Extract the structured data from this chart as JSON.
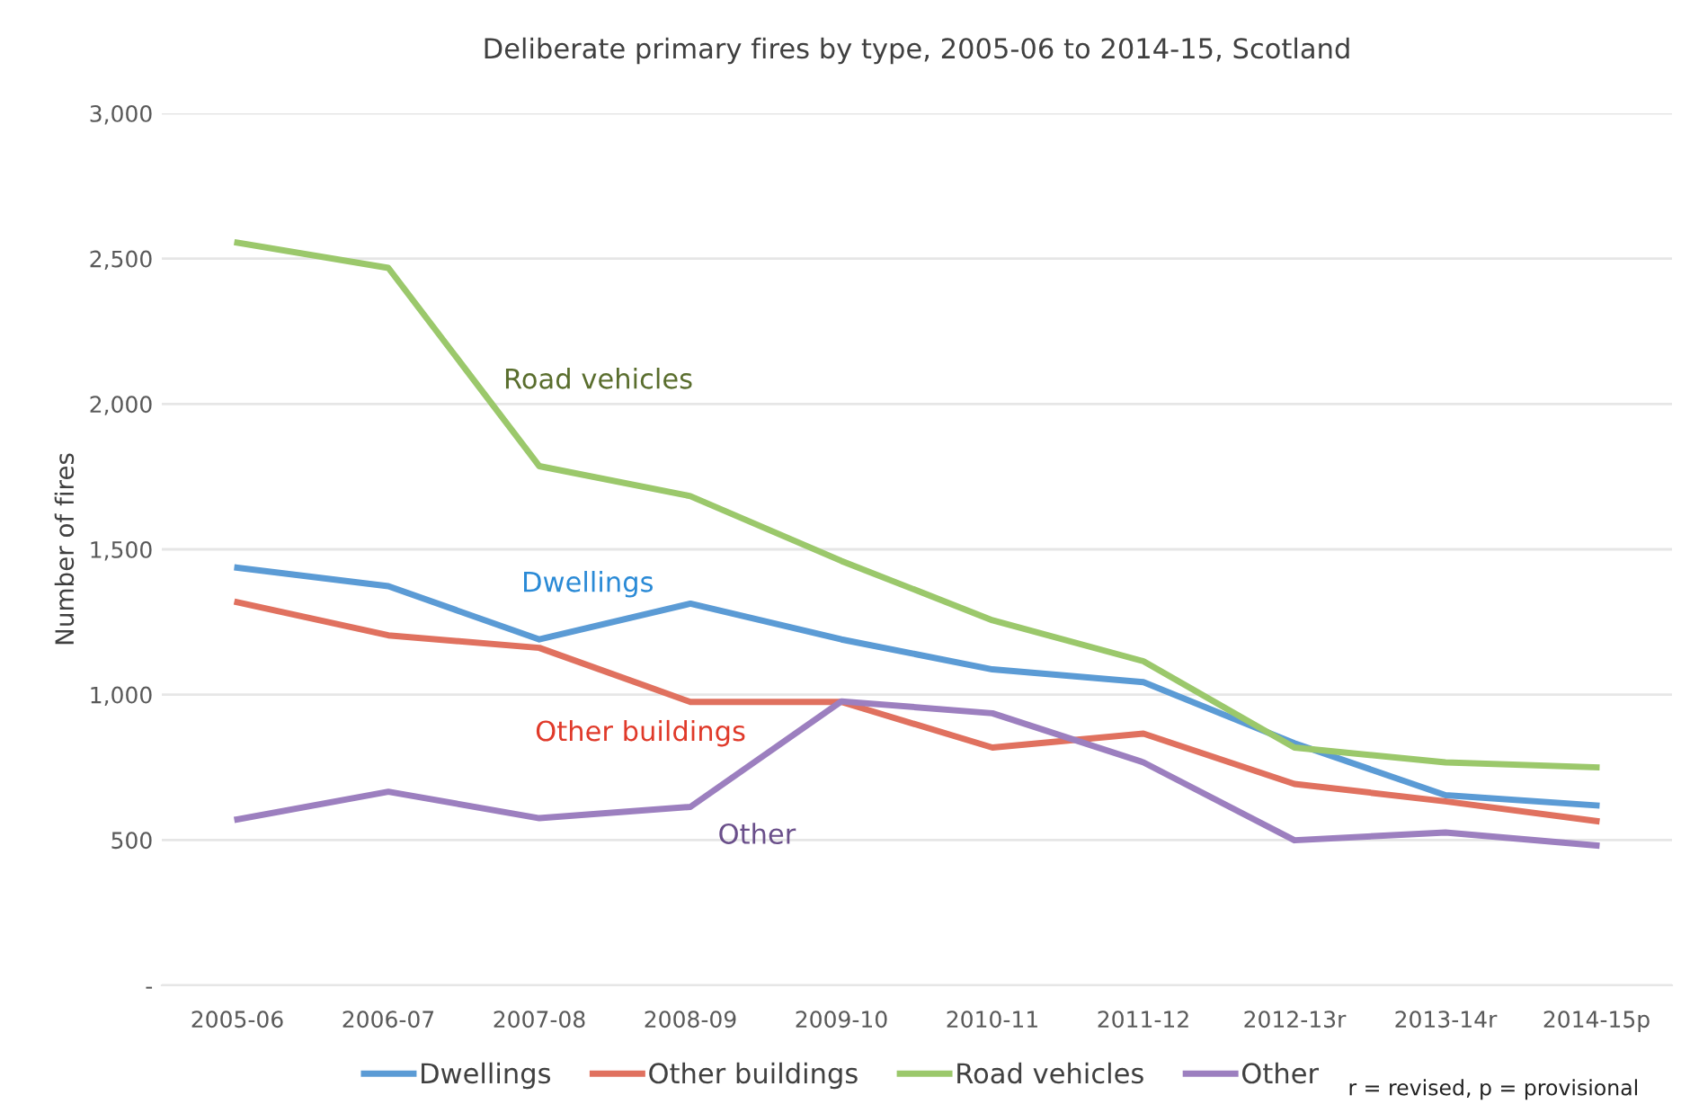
{
  "chart_data": {
    "type": "line",
    "title": "Deliberate primary fires by type, 2005-06 to 2014-15, Scotland",
    "ylabel": "Number of fires",
    "categories": [
      "2005-06",
      "2006-07",
      "2007-08",
      "2008-09",
      "2009-10",
      "2010-11",
      "2011-12",
      "2012-13r",
      "2013-14r",
      "2014-15p"
    ],
    "series": [
      {
        "name": "Dwellings",
        "color": "#5b9bd5",
        "values": [
          1437,
          1373,
          1190,
          1313,
          1190,
          1087,
          1043,
          833,
          654,
          619
        ]
      },
      {
        "name": "Other buildings",
        "color": "#e0715f",
        "values": [
          1318,
          1204,
          1161,
          975,
          975,
          818,
          866,
          693,
          633,
          565
        ]
      },
      {
        "name": "Road vehicles",
        "color": "#9bc86b",
        "values": [
          2555,
          2468,
          1786,
          1683,
          1460,
          1256,
          1115,
          818,
          767,
          750
        ]
      },
      {
        "name": "Other",
        "color": "#9c7fbf",
        "values": [
          571,
          666,
          575,
          614,
          977,
          936,
          767,
          499,
          526,
          481
        ]
      }
    ],
    "annotations": [
      "Road vehicles",
      "Dwellings",
      "Other buildings",
      "Other",
      "r = revised, p = provisional"
    ],
    "ylim": [
      0,
      3000
    ],
    "yticks": [
      {
        "value": 0,
        "label": "-"
      },
      500,
      {
        "value": 1000,
        "label": "1,000"
      },
      {
        "value": 1500,
        "label": "1,500"
      },
      {
        "value": 2000,
        "label": "2,000"
      },
      {
        "value": 2500,
        "label": "2,500"
      },
      {
        "value": 3000,
        "label": "3,000"
      }
    ],
    "grid": "y",
    "legend": "bottom",
    "marker": "none",
    "line_style": "solid"
  }
}
